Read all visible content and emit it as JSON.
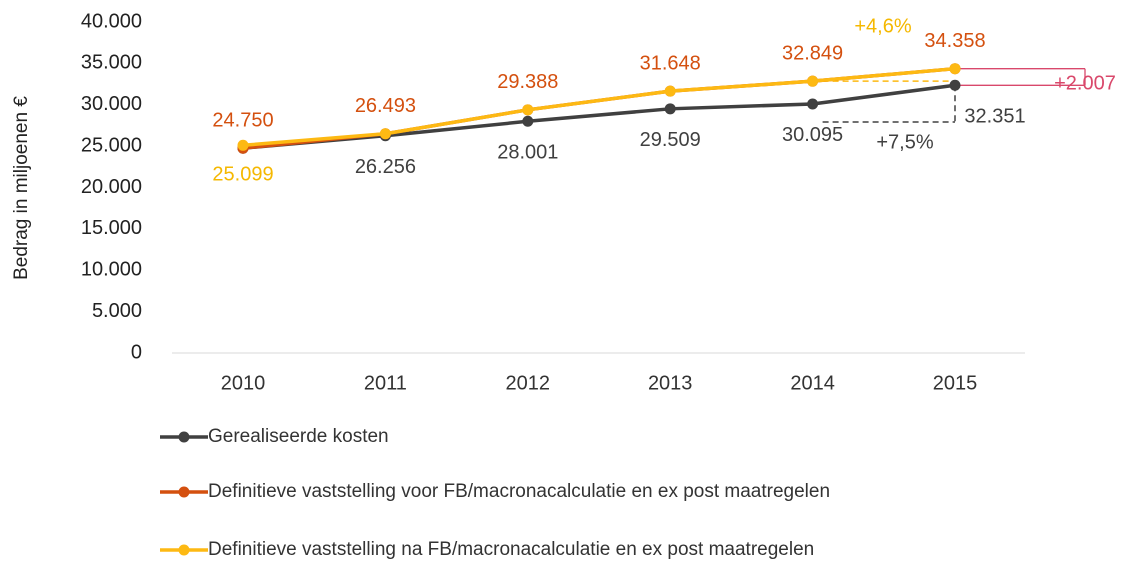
{
  "chart_data": {
    "type": "line",
    "y_axis_label": "Bedrag in miljoenen €",
    "categories": [
      "2010",
      "2011",
      "2012",
      "2013",
      "2014",
      "2015"
    ],
    "series": [
      {
        "name": "Gerealiseerde kosten",
        "color": "#404040",
        "values": [
          24750,
          26256,
          28001,
          29509,
          30095,
          32351
        ],
        "value_labels": [
          null,
          "26.256",
          "28.001",
          "29.509",
          "30.095",
          "32.351"
        ]
      },
      {
        "name": "Definitieve vaststelling voor FB/macronacalculatie en ex post maatregelen",
        "color": "#d4500f",
        "values": [
          24750,
          26493,
          29388,
          31648,
          32849,
          34358
        ],
        "value_labels": [
          "24.750",
          "26.493",
          "29.388",
          "31.648",
          "32.849",
          "34.358"
        ]
      },
      {
        "name": "Definitieve vaststelling na FB/macronacalculatie en ex post maatregelen",
        "color": "#fdb913",
        "values": [
          25099,
          26493,
          29388,
          31648,
          32849,
          34358
        ],
        "value_labels": [
          "25.099",
          null,
          null,
          null,
          null,
          null
        ]
      }
    ],
    "ylim": [
      0,
      40000
    ],
    "yticks": [
      0,
      {
        "value": 5000,
        "label": "5.000"
      },
      {
        "value": 10000,
        "label": "10.000"
      },
      {
        "value": 15000,
        "label": "15.000"
      },
      {
        "value": 20000,
        "label": "20.000"
      },
      {
        "value": 25000,
        "label": "25.000"
      },
      {
        "value": 30000,
        "label": "30.000"
      },
      {
        "value": 35000,
        "label": "35.000"
      },
      {
        "value": 40000,
        "label": "40.000"
      }
    ],
    "annotations": [
      {
        "text": "+4,6%",
        "color": "#f5b800"
      },
      {
        "text": "+7,5%",
        "color": "#404040"
      },
      {
        "text": "+2.007",
        "color": "#d9486b"
      }
    ],
    "grid": false
  }
}
